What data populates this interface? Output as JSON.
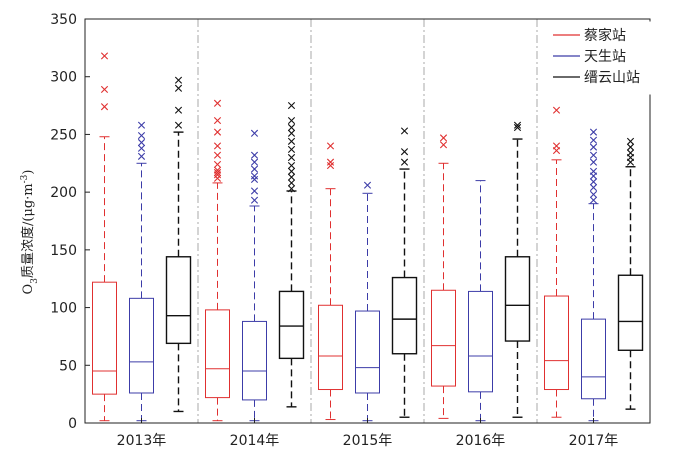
{
  "chart_data": {
    "type": "boxplot",
    "categories": [
      "2013年",
      "2014年",
      "2015年",
      "2016年",
      "2017年"
    ],
    "ylabel_main": "O",
    "ylabel_sub": "3",
    "ylabel_rest": "质量浓度/(μg·m",
    "ylabel_sup": "-3",
    "ylabel_close": ")",
    "ylim": [
      0,
      350
    ],
    "yticks": [
      0,
      50,
      100,
      150,
      200,
      250,
      300,
      350
    ],
    "legend_position": "top-right",
    "series": [
      {
        "name": "蔡家站",
        "color": "#e03030",
        "boxes": [
          {
            "q1": 25,
            "median": 45,
            "q3": 122,
            "whisker_low": 2,
            "whisker_high": 248,
            "outliers": [
              274,
              289,
              318
            ]
          },
          {
            "q1": 22,
            "median": 47,
            "q3": 98,
            "whisker_low": 2,
            "whisker_high": 208,
            "outliers": [
              212,
              215,
              217,
              219,
              224,
              232,
              240,
              252,
              262,
              277
            ]
          },
          {
            "q1": 29,
            "median": 58,
            "q3": 102,
            "whisker_low": 3,
            "whisker_high": 203,
            "outliers": [
              223,
              226,
              240
            ]
          },
          {
            "q1": 32,
            "median": 67,
            "q3": 115,
            "whisker_low": 4,
            "whisker_high": 225,
            "outliers": [
              241,
              247
            ]
          },
          {
            "q1": 29,
            "median": 54,
            "q3": 110,
            "whisker_low": 5,
            "whisker_high": 228,
            "outliers": [
              236,
              240,
              271
            ]
          }
        ]
      },
      {
        "name": "天生站",
        "color": "#3c3ca8",
        "boxes": [
          {
            "q1": 26,
            "median": 53,
            "q3": 108,
            "whisker_low": 2,
            "whisker_high": 225,
            "outliers": [
              231,
              238,
              243,
              249,
              258
            ]
          },
          {
            "q1": 20,
            "median": 45,
            "q3": 88,
            "whisker_low": 2,
            "whisker_high": 188,
            "outliers": [
              193,
              201,
              211,
              214,
              220,
              226,
              232,
              251
            ]
          },
          {
            "q1": 26,
            "median": 48,
            "q3": 97,
            "whisker_low": 2,
            "whisker_high": 199,
            "outliers": [
              206
            ]
          },
          {
            "q1": 27,
            "median": 58,
            "q3": 114,
            "whisker_low": 2,
            "whisker_high": 210,
            "outliers": []
          },
          {
            "q1": 21,
            "median": 40,
            "q3": 90,
            "whisker_low": 2,
            "whisker_high": 190,
            "outliers": [
              193,
              198,
              204,
              209,
              214,
              218,
              226,
              232,
              239,
              245,
              252
            ]
          }
        ]
      },
      {
        "name": "缙云山站",
        "color": "#111111",
        "boxes": [
          {
            "q1": 69,
            "median": 93,
            "q3": 144,
            "whisker_low": 10,
            "whisker_high": 252,
            "outliers": [
              258,
              271,
              290,
              297
            ]
          },
          {
            "q1": 56,
            "median": 84,
            "q3": 114,
            "whisker_low": 14,
            "whisker_high": 201,
            "outliers": [
              203,
              208,
              213,
              218,
              223,
              230,
              237,
              244,
              251,
              256,
              262,
              275
            ]
          },
          {
            "q1": 60,
            "median": 90,
            "q3": 126,
            "whisker_low": 5,
            "whisker_high": 220,
            "outliers": [
              226,
              235,
              253
            ]
          },
          {
            "q1": 71,
            "median": 102,
            "q3": 144,
            "whisker_low": 5,
            "whisker_high": 246,
            "outliers": [
              256,
              258
            ]
          },
          {
            "q1": 63,
            "median": 88,
            "q3": 128,
            "whisker_low": 12,
            "whisker_high": 222,
            "outliers": [
              226,
              230,
              234,
              239,
              244
            ]
          }
        ]
      }
    ]
  }
}
